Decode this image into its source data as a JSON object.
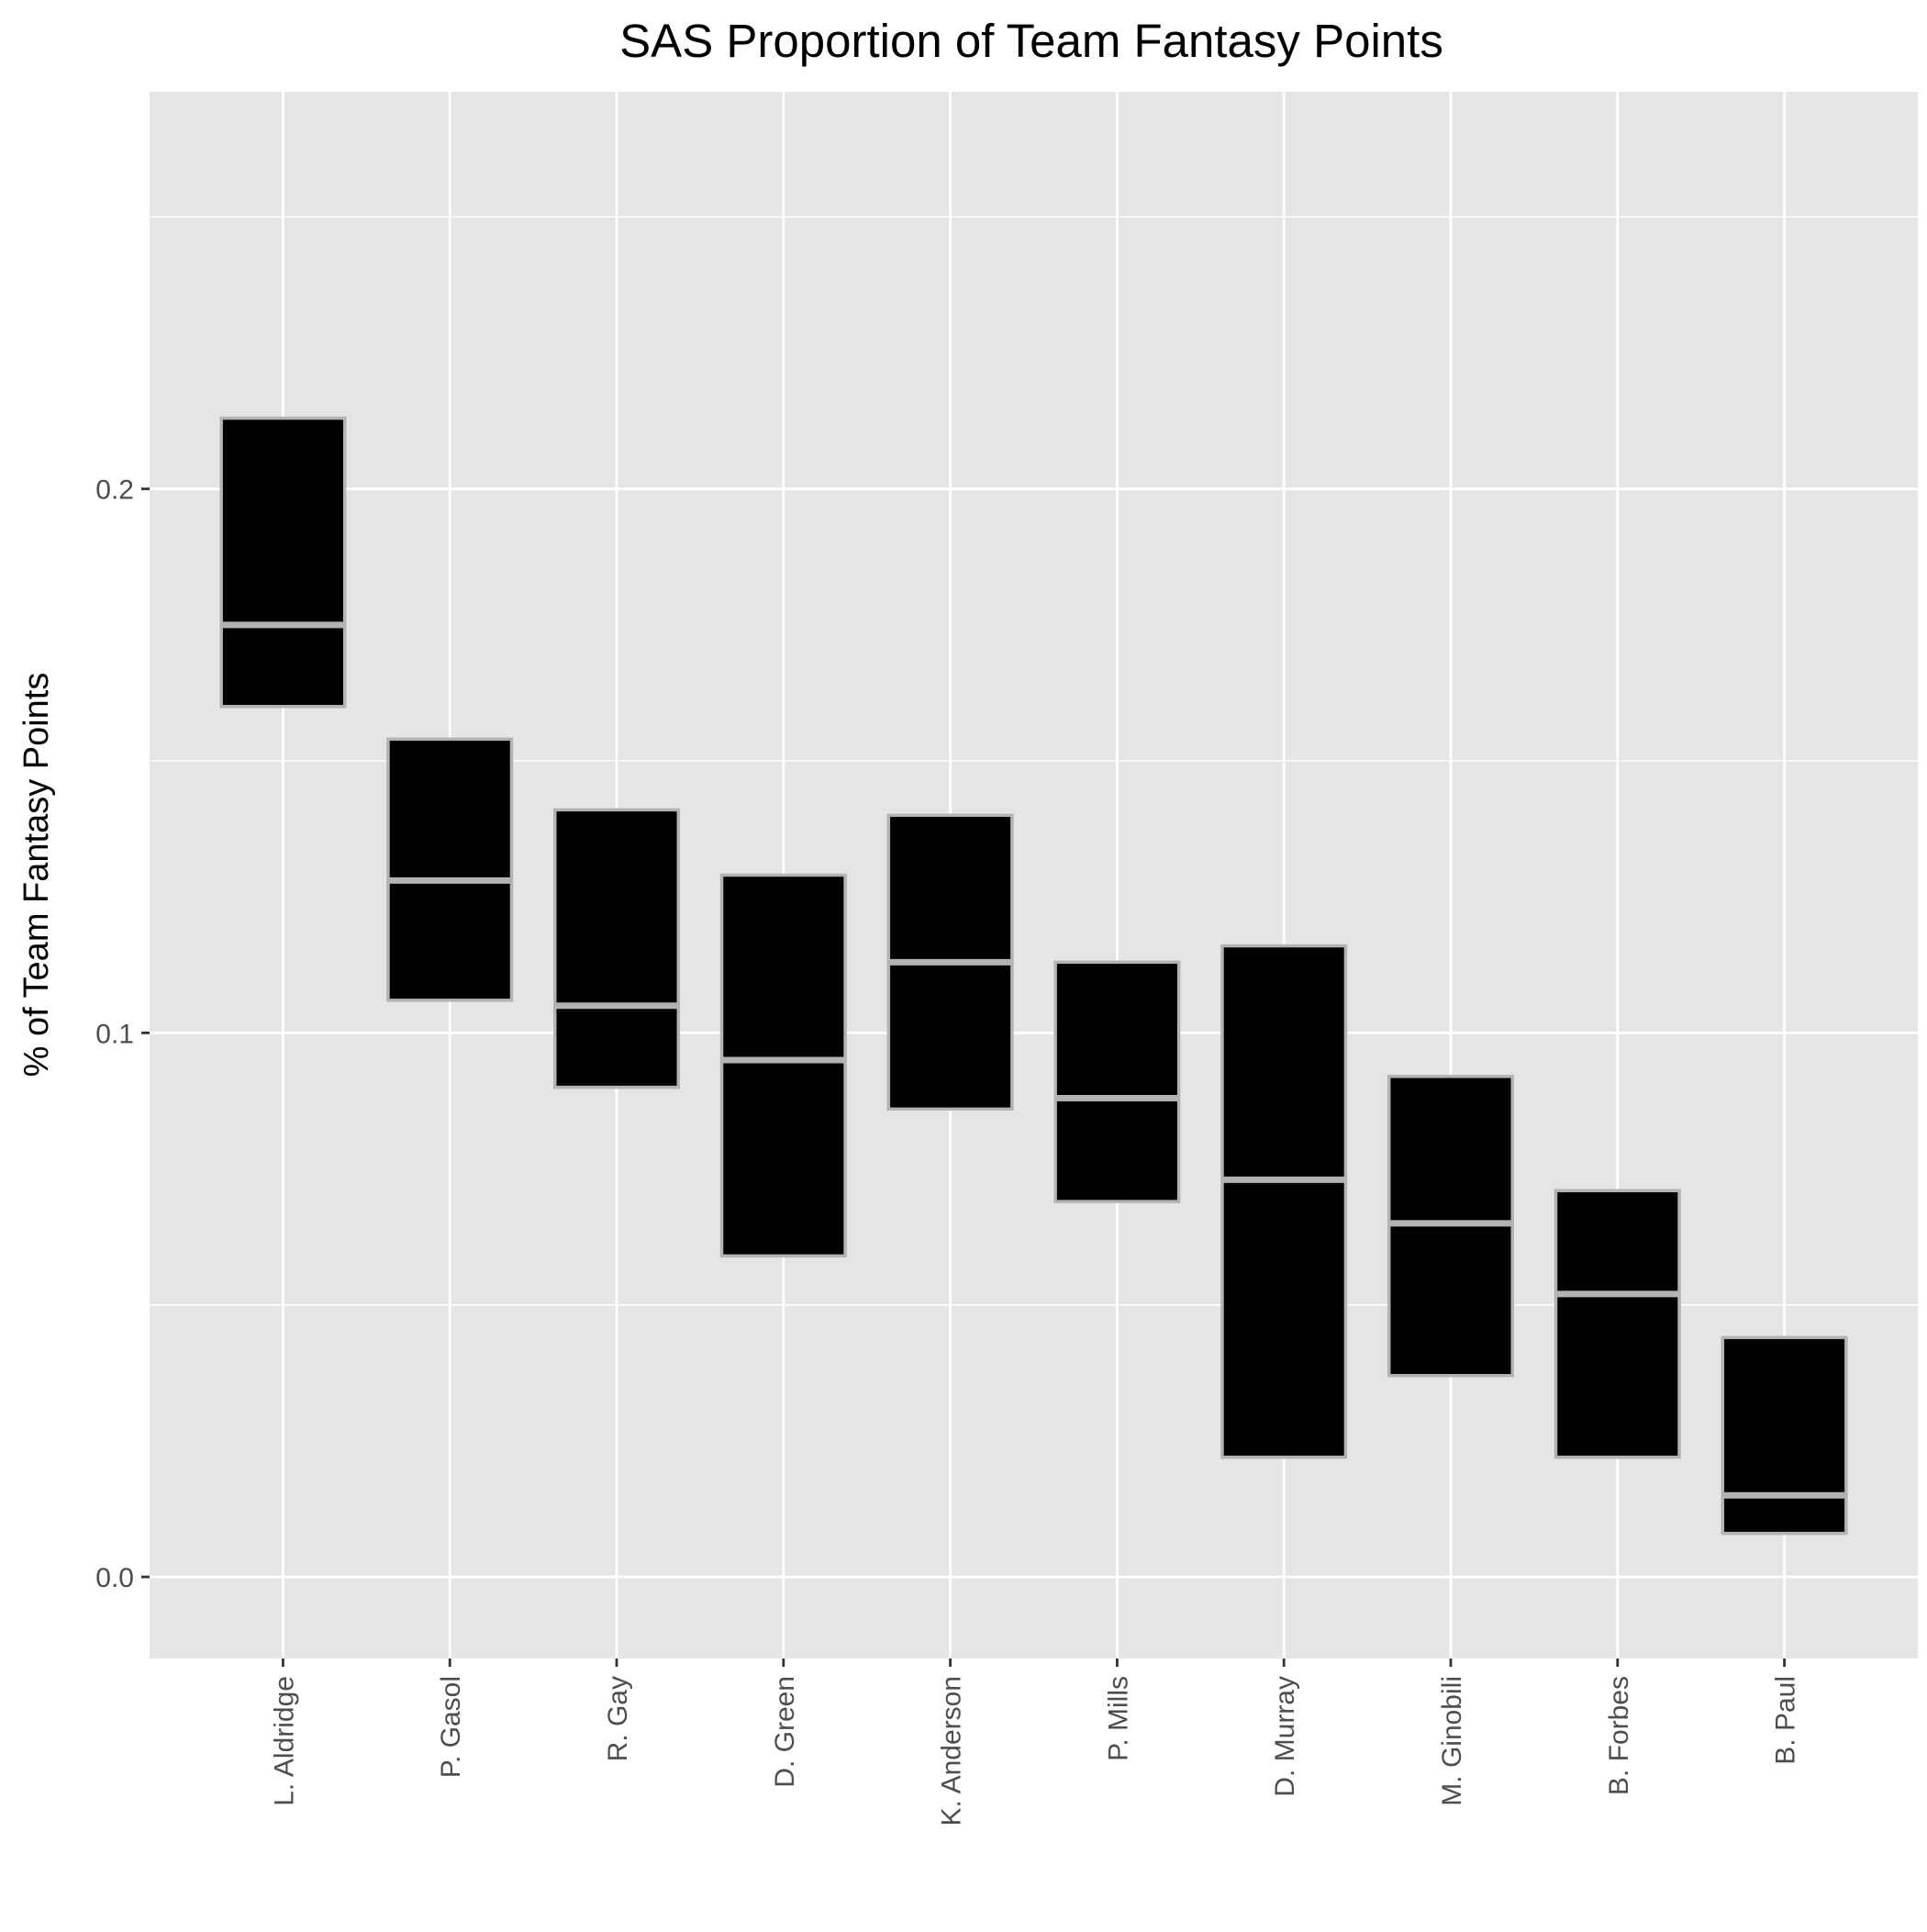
{
  "chart_data": {
    "type": "boxplot",
    "title": "SAS Proportion of Team Fantasy Points",
    "xlabel": "",
    "ylabel": "% of Team Fantasy Points",
    "ylim": [
      -0.015,
      0.273
    ],
    "y_ticks": [
      {
        "value": 0.0,
        "label": "0.0"
      },
      {
        "value": 0.1,
        "label": "0.1"
      },
      {
        "value": 0.2,
        "label": "0.2"
      }
    ],
    "y_minor_gridlines": [
      0.05,
      0.15,
      0.25
    ],
    "grid": true,
    "categories": [
      "L. Aldridge",
      "P. Gasol",
      "R. Gay",
      "D. Green",
      "K. Anderson",
      "P. Mills",
      "D. Murray",
      "M. Ginobili",
      "B. Forbes",
      "B. Paul"
    ],
    "boxes": [
      {
        "player": "L. Aldridge",
        "lower": 0.16,
        "median": 0.175,
        "upper": 0.213
      },
      {
        "player": "P. Gasol",
        "lower": 0.106,
        "median": 0.128,
        "upper": 0.154
      },
      {
        "player": "R. Gay",
        "lower": 0.09,
        "median": 0.105,
        "upper": 0.141
      },
      {
        "player": "D. Green",
        "lower": 0.059,
        "median": 0.095,
        "upper": 0.129
      },
      {
        "player": "K. Anderson",
        "lower": 0.086,
        "median": 0.113,
        "upper": 0.14
      },
      {
        "player": "P. Mills",
        "lower": 0.069,
        "median": 0.088,
        "upper": 0.113
      },
      {
        "player": "D. Murray",
        "lower": 0.022,
        "median": 0.073,
        "upper": 0.116
      },
      {
        "player": "M. Ginobili",
        "lower": 0.037,
        "median": 0.065,
        "upper": 0.092
      },
      {
        "player": "B. Forbes",
        "lower": 0.022,
        "median": 0.052,
        "upper": 0.071
      },
      {
        "player": "B. Paul",
        "lower": 0.008,
        "median": 0.015,
        "upper": 0.044
      }
    ],
    "colors": {
      "panel_background": "#e5e5e5",
      "grid": "#ffffff",
      "box_fill": "#000000",
      "box_outline": "#b3b3b3",
      "median_line": "#b3b3b3",
      "tick_text": "#4d4d4d",
      "axis_ticks": "#333333"
    }
  }
}
